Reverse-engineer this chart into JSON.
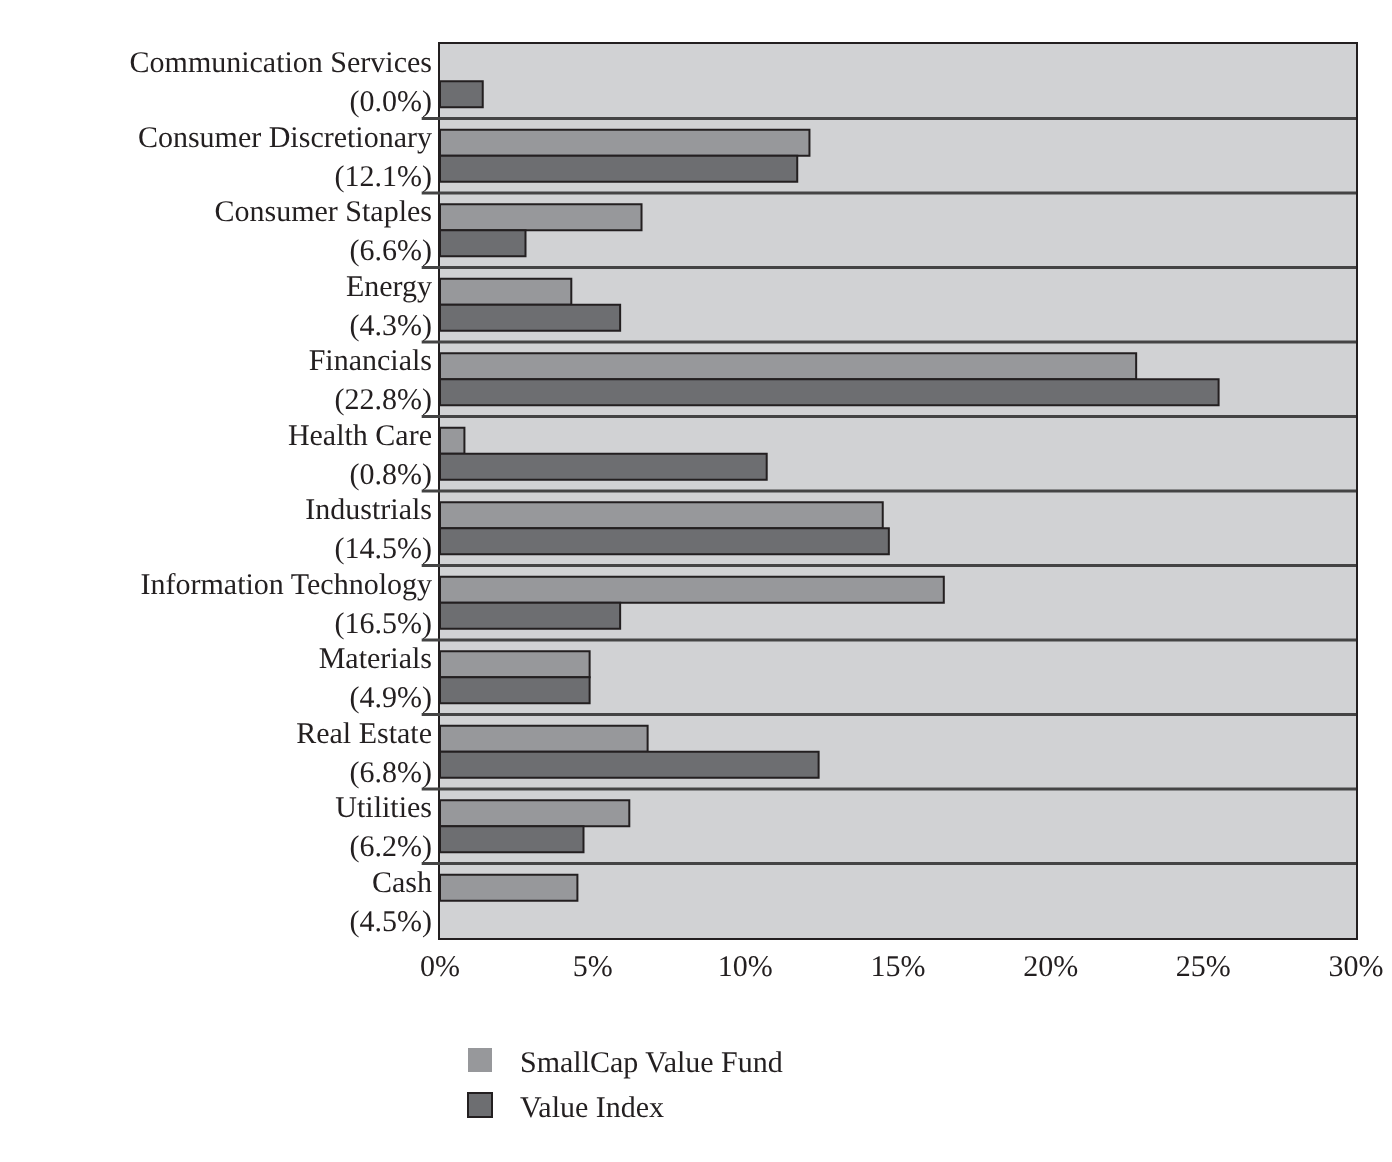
{
  "chart_data": {
    "type": "bar",
    "orientation": "horizontal",
    "categories": [
      "Communication Services\n(0.0%)",
      "Consumer Discretionary\n(12.1%)",
      "Consumer Staples\n(6.6%)",
      "Energy\n(4.3%)",
      "Financials\n(22.8%)",
      "Health Care\n(0.8%)",
      "Industrials\n(14.5%)",
      "Information Technology\n(16.5%)",
      "Materials\n(4.9%)",
      "Real Estate\n(6.8%)",
      "Utilities\n(6.2%)",
      "Cash\n(4.5%)"
    ],
    "series": [
      {
        "name": "SmallCap Value Fund",
        "color": "#97989b",
        "values": [
          0.0,
          12.1,
          6.6,
          4.3,
          22.8,
          0.8,
          14.5,
          16.5,
          4.9,
          6.8,
          6.2,
          4.5
        ]
      },
      {
        "name": "Value Index",
        "color": "#6d6e71",
        "values": [
          1.4,
          11.7,
          2.8,
          5.9,
          25.5,
          10.7,
          14.7,
          5.9,
          4.9,
          12.4,
          4.7,
          null
        ]
      }
    ],
    "xlim": [
      0,
      30
    ],
    "xticks": [
      {
        "value": 0,
        "label": "0%"
      },
      {
        "value": 5,
        "label": "5%"
      },
      {
        "value": 10,
        "label": "10%"
      },
      {
        "value": 15,
        "label": "15%"
      },
      {
        "value": 20,
        "label": "20%"
      },
      {
        "value": 25,
        "label": "25%"
      },
      {
        "value": 30,
        "label": "30%"
      }
    ],
    "grid": "y",
    "legend": "bottom"
  }
}
